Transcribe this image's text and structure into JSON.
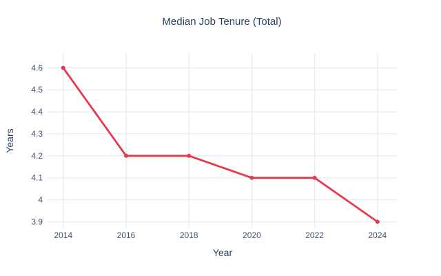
{
  "figure": {
    "title": "Median Job Tenure (Total)"
  },
  "chart_data": {
    "type": "line",
    "title": "Median Job Tenure (Total)",
    "xlabel": "Year",
    "ylabel": "Years",
    "x": [
      2014,
      2016,
      2018,
      2020,
      2022,
      2024
    ],
    "y": [
      4.6,
      4.2,
      4.2,
      4.1,
      4.1,
      3.9
    ],
    "series": [
      {
        "name": "Median Job Tenure (Total)",
        "x": [
          2014,
          2016,
          2018,
          2020,
          2022,
          2024
        ],
        "values": [
          4.6,
          4.2,
          4.2,
          4.1,
          4.1,
          3.9
        ]
      }
    ],
    "x_ticks": [
      2014,
      2016,
      2018,
      2020,
      2022,
      2024
    ],
    "x_tick_labels": [
      "2014",
      "2016",
      "2018",
      "2020",
      "2022",
      "2024"
    ],
    "y_ticks": [
      3.9,
      4,
      4.1,
      4.2,
      4.3,
      4.4,
      4.5,
      4.6
    ],
    "y_tick_labels": [
      "3.9",
      "4",
      "4.1",
      "4.2",
      "4.3",
      "4.4",
      "4.5",
      "4.6"
    ],
    "xlim": [
      2013.5,
      2024.64
    ],
    "ylim": [
      3.873,
      4.664
    ],
    "grid": true,
    "legend": false,
    "line_color": "#e8384e",
    "marker_color": "#e8384e",
    "text_color": "#2a3f5f",
    "tick_color": "#42536e",
    "grid_color": "#e8ebf5",
    "background": "#ffffff"
  }
}
